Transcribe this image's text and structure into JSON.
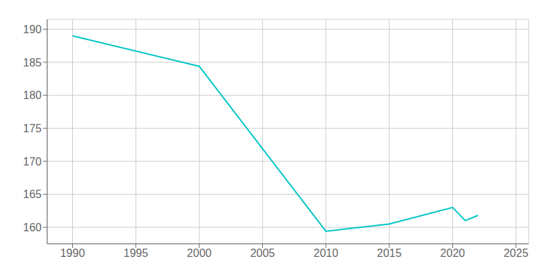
{
  "chart_data": {
    "type": "line",
    "x": [
      1990,
      2000,
      2010,
      2015,
      2020,
      2021,
      2022
    ],
    "values": [
      189.0,
      184.4,
      159.4,
      160.5,
      163.0,
      161.0,
      161.8
    ],
    "color": "#00C5C5",
    "xlim": [
      1988,
      2026
    ],
    "ylim": [
      157.5,
      191.5
    ],
    "xticks": [
      1990,
      1995,
      2000,
      2005,
      2010,
      2015,
      2020,
      2025
    ],
    "yticks": [
      160,
      165,
      170,
      175,
      180,
      185,
      190
    ],
    "grid": true
  }
}
